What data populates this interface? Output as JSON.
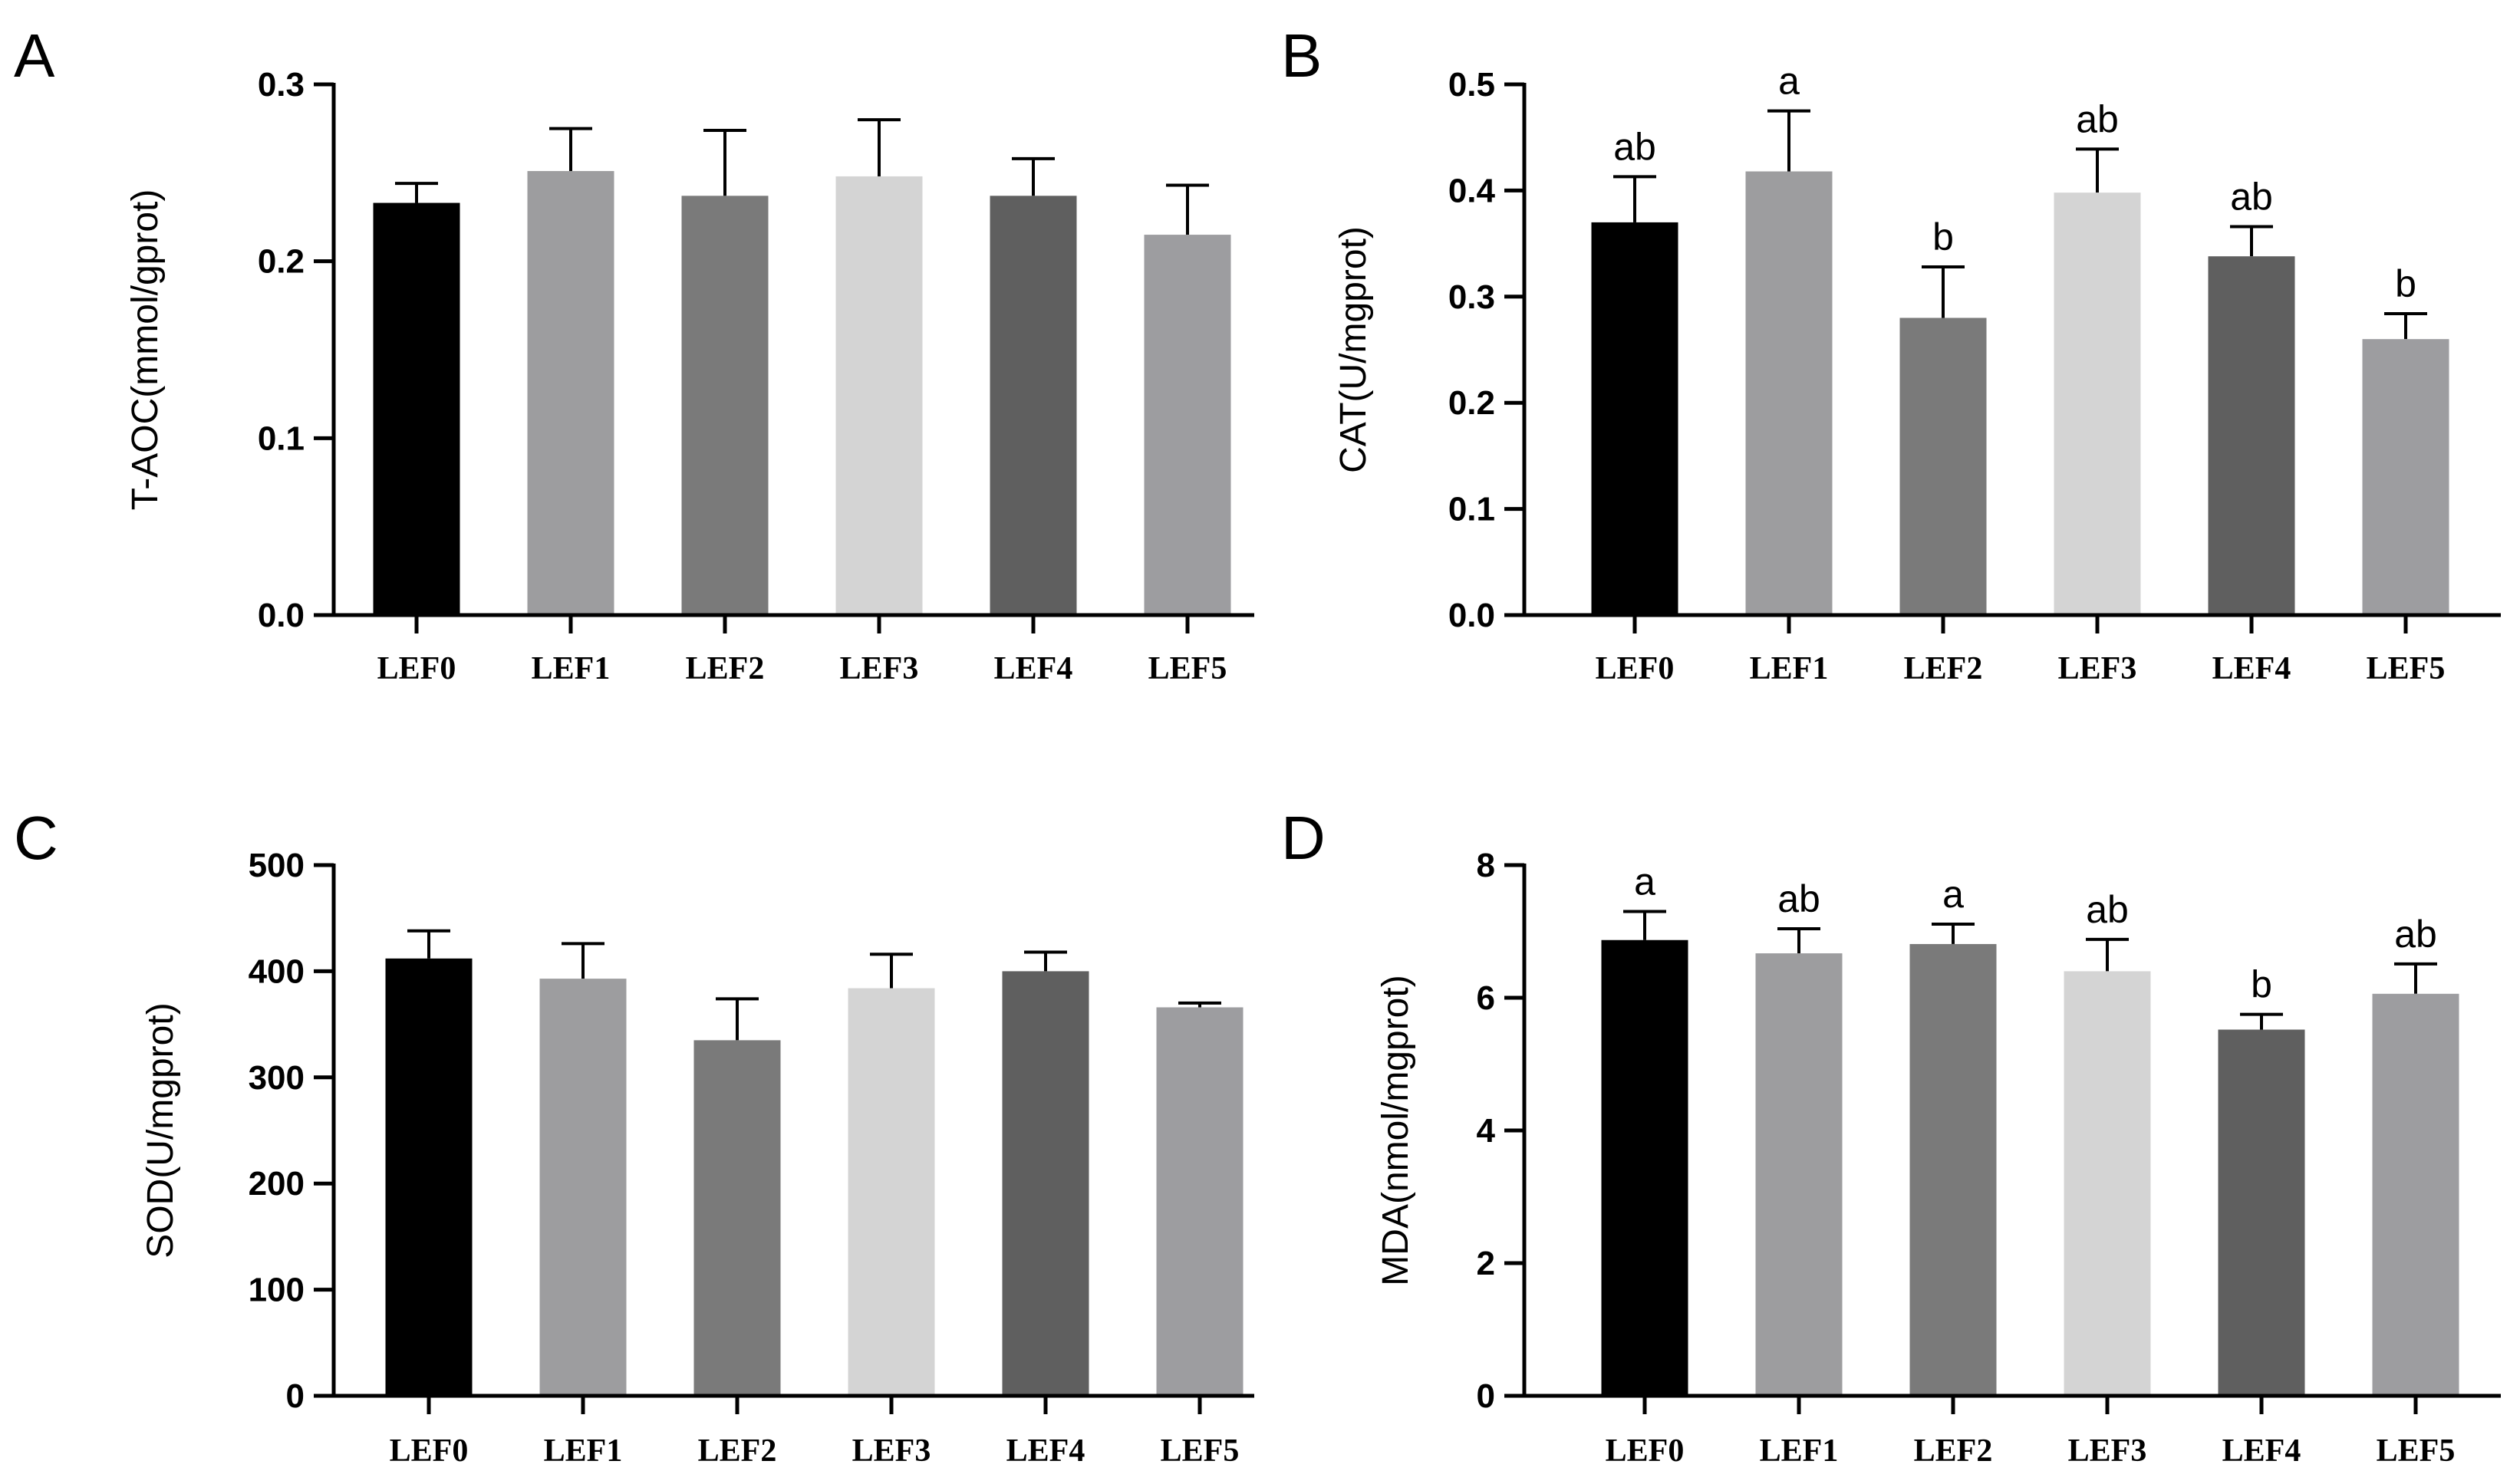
{
  "chart_data": [
    {
      "panel": "A",
      "type": "bar",
      "ylabel": "T-AOC(mmol/gprot)",
      "categories": [
        "LEF0",
        "LEF1",
        "LEF2",
        "LEF3",
        "LEF4",
        "LEF5"
      ],
      "values": [
        0.233,
        0.251,
        0.237,
        0.248,
        0.237,
        0.215
      ],
      "errors": [
        0.011,
        0.024,
        0.037,
        0.032,
        0.021,
        0.028
      ],
      "significance": [
        "",
        "",
        "",
        "",
        "",
        ""
      ],
      "ylim": [
        0,
        0.3
      ],
      "yticks": [
        0.0,
        0.1,
        0.2,
        0.3
      ],
      "ytick_labels": [
        "0.0",
        "0.1",
        "0.2",
        "0.3"
      ],
      "colors": [
        "#000000",
        "#9d9d9f",
        "#7a7a7a",
        "#d4d4d4",
        "#5f5f5f",
        "#9d9da0"
      ]
    },
    {
      "panel": "B",
      "type": "bar",
      "ylabel": "CAT(U/mgprot)",
      "categories": [
        "LEF0",
        "LEF1",
        "LEF2",
        "LEF3",
        "LEF4",
        "LEF5"
      ],
      "values": [
        0.37,
        0.418,
        0.28,
        0.398,
        0.338,
        0.26
      ],
      "errors": [
        0.043,
        0.057,
        0.048,
        0.041,
        0.028,
        0.024
      ],
      "significance": [
        "ab",
        "a",
        "b",
        "ab",
        "ab",
        "b"
      ],
      "ylim": [
        0,
        0.5
      ],
      "yticks": [
        0.0,
        0.1,
        0.2,
        0.3,
        0.4,
        0.5
      ],
      "ytick_labels": [
        "0.0",
        "0.1",
        "0.2",
        "0.3",
        "0.4",
        "0.5"
      ],
      "colors": [
        "#000000",
        "#9d9d9f",
        "#7a7a7a",
        "#d4d4d4",
        "#5f5f5f",
        "#9d9da0"
      ]
    },
    {
      "panel": "C",
      "type": "bar",
      "ylabel": "SOD(U/mgprot)",
      "categories": [
        "LEF0",
        "LEF1",
        "LEF2",
        "LEF3",
        "LEF4",
        "LEF5"
      ],
      "values": [
        412,
        393,
        335,
        384,
        400,
        366
      ],
      "errors": [
        26,
        33,
        39,
        32,
        18,
        4
      ],
      "significance": [
        "",
        "",
        "",
        "",
        "",
        ""
      ],
      "ylim": [
        0,
        500
      ],
      "yticks": [
        0,
        100,
        200,
        300,
        400,
        500
      ],
      "ytick_labels": [
        "0",
        "100",
        "200",
        "300",
        "400",
        "500"
      ],
      "colors": [
        "#000000",
        "#9d9d9f",
        "#7a7a7a",
        "#d4d4d4",
        "#5f5f5f",
        "#9d9da0"
      ]
    },
    {
      "panel": "D",
      "type": "bar",
      "ylabel": "MDA(nmol/mgprot)",
      "categories": [
        "LEF0",
        "LEF1",
        "LEF2",
        "LEF3",
        "LEF4",
        "LEF5"
      ],
      "values": [
        6.87,
        6.67,
        6.81,
        6.4,
        5.52,
        6.06
      ],
      "errors": [
        0.43,
        0.37,
        0.3,
        0.48,
        0.23,
        0.45
      ],
      "significance": [
        "a",
        "ab",
        "a",
        "ab",
        "b",
        "ab"
      ],
      "ylim": [
        0,
        8
      ],
      "yticks": [
        0,
        2,
        4,
        6,
        8
      ],
      "ytick_labels": [
        "0",
        "2",
        "4",
        "6",
        "8"
      ],
      "colors": [
        "#000000",
        "#9d9d9f",
        "#7a7a7a",
        "#d4d4d4",
        "#5f5f5f",
        "#9d9da0"
      ]
    }
  ]
}
